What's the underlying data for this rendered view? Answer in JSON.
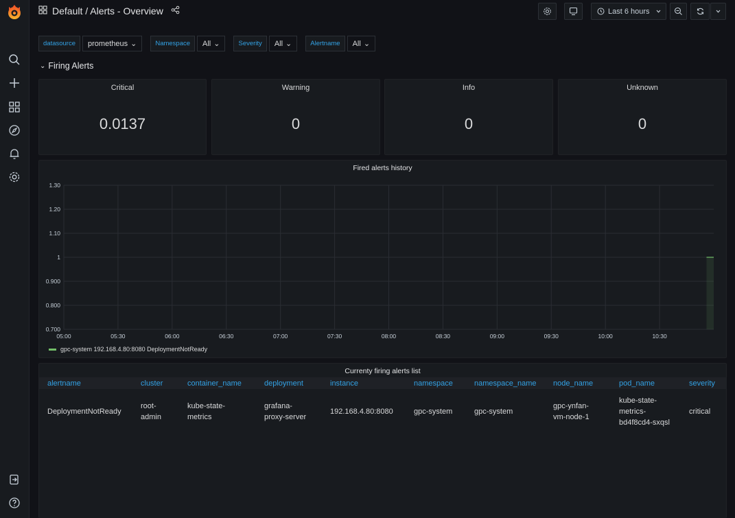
{
  "header": {
    "title": "Default / Alerts - Overview",
    "time_range": "Last 6 hours"
  },
  "sidebar": {
    "items": [
      "search-icon",
      "plus-icon",
      "dashboards-icon",
      "explore-icon",
      "alerting-icon",
      "settings-icon"
    ],
    "bottom_items": [
      "sign-out-icon",
      "help-icon"
    ]
  },
  "variables": [
    {
      "label": "datasource",
      "value": "prometheus"
    },
    {
      "label": "Namespace",
      "value": "All"
    },
    {
      "label": "Severity",
      "value": "All"
    },
    {
      "label": "Alertname",
      "value": "All"
    }
  ],
  "row": {
    "title": "Firing Alerts"
  },
  "stats": [
    {
      "title": "Critical",
      "value": "0.0137"
    },
    {
      "title": "Warning",
      "value": "0"
    },
    {
      "title": "Info",
      "value": "0"
    },
    {
      "title": "Unknown",
      "value": "0"
    }
  ],
  "chart_data": {
    "type": "line",
    "title": "Fired alerts history",
    "x_ticks": [
      "05:00",
      "05:30",
      "06:00",
      "06:30",
      "07:00",
      "07:30",
      "08:00",
      "08:30",
      "09:00",
      "09:30",
      "10:00",
      "10:30"
    ],
    "y_ticks": [
      "1.30",
      "1.20",
      "1.10",
      "1",
      "0.900",
      "0.800",
      "0.700"
    ],
    "ylim": [
      0.7,
      1.3
    ],
    "grid": true,
    "legend_placement": "bottom-left",
    "series": [
      {
        "name": "gpc-system 192.168.4.80:8080 DeploymentNotReady",
        "color": "#73bf69",
        "x": [
          "10:56",
          "11:00"
        ],
        "values": [
          1,
          1
        ]
      }
    ]
  },
  "table": {
    "title": "Currenty firing alerts list",
    "columns": [
      "alertname",
      "cluster",
      "container_name",
      "deployment",
      "instance",
      "namespace",
      "namespace_name",
      "node_name",
      "pod_name",
      "severity"
    ],
    "rows": [
      [
        "DeploymentNotReady",
        "root-admin",
        "kube-state-metrics",
        "grafana-proxy-server",
        "192.168.4.80:8080",
        "gpc-system",
        "gpc-system",
        "gpc-ynfan-vm-node-1",
        "kube-state-metrics-bd4f8cd4-sxqsl",
        "critical"
      ]
    ]
  },
  "colors": {
    "accent": "#33a2e5",
    "series": "#73bf69",
    "background": "#111217",
    "panel": "#181b1f"
  }
}
